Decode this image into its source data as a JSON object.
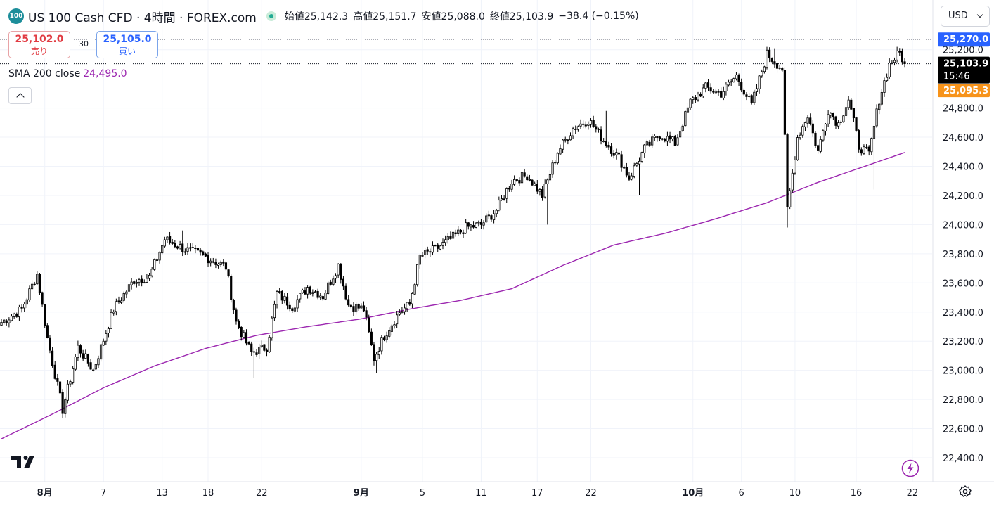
{
  "header": {
    "symbol_badge": "100",
    "title": "US 100 Cash CFD · 4時間 · FOREX.com",
    "open": "始値25,142.3",
    "high": "高値25,151.7",
    "low": "安値25,088.0",
    "close": "終値25,103.9",
    "change": "−38.4 (−0.15%)"
  },
  "trade": {
    "sell_price": "25,102.0",
    "sell_label": "売り",
    "spread": "30",
    "buy_price": "25,105.0",
    "buy_label": "買い"
  },
  "indicator": {
    "name": "SMA 200 close",
    "value": "24,495.0"
  },
  "currency": "USD",
  "icons": {
    "collapse": "chevron-up-icon",
    "currency_dropdown": "chevron-down-icon",
    "logo": "tradingview-logo",
    "quick_action": "lightning-icon",
    "settings": "gear-icon"
  },
  "colors": {
    "sma": "#9c27b0",
    "buy": "#2962ff",
    "sell": "#e13b42",
    "live": "#22ab94",
    "candle": "#000000",
    "target_label": "#2962ff",
    "lower_label": "#f7931a"
  },
  "chart_data": {
    "type": "candlestick",
    "x_tick_labels": [
      "8月",
      "7",
      "13",
      "18",
      "22",
      "9月",
      "5",
      "11",
      "17",
      "22",
      "10月",
      "6",
      "10",
      "16",
      "22"
    ],
    "x_tick_bold": [
      "8月",
      "9月",
      "10月"
    ],
    "y_ticks": [
      "22,400.0",
      "22,600.0",
      "22,800.0",
      "23,000.0",
      "23,200.0",
      "23,400.0",
      "23,600.0",
      "23,800.0",
      "24,000.0",
      "24,200.0",
      "24,400.0",
      "24,600.0",
      "24,800.0",
      "25,200.0"
    ],
    "ylim": [
      22390,
      25350
    ],
    "price_labels": {
      "upper": "25,270.0",
      "last": "25,103.9",
      "countdown": "15:46",
      "lower": "25,095.3"
    },
    "close_path": [
      {
        "i": 0,
        "v": 23330
      },
      {
        "i": 8,
        "v": 23420
      },
      {
        "i": 14,
        "v": 23660
      },
      {
        "i": 18,
        "v": 23220
      },
      {
        "i": 24,
        "v": 22730
      },
      {
        "i": 30,
        "v": 23160
      },
      {
        "i": 36,
        "v": 23000
      },
      {
        "i": 44,
        "v": 23420
      },
      {
        "i": 52,
        "v": 23620
      },
      {
        "i": 58,
        "v": 23640
      },
      {
        "i": 64,
        "v": 23900
      },
      {
        "i": 72,
        "v": 23830
      },
      {
        "i": 80,
        "v": 23780
      },
      {
        "i": 88,
        "v": 23710
      },
      {
        "i": 92,
        "v": 23330
      },
      {
        "i": 98,
        "v": 23120
      },
      {
        "i": 104,
        "v": 23160
      },
      {
        "i": 108,
        "v": 23530
      },
      {
        "i": 114,
        "v": 23440
      },
      {
        "i": 120,
        "v": 23570
      },
      {
        "i": 126,
        "v": 23510
      },
      {
        "i": 132,
        "v": 23720
      },
      {
        "i": 136,
        "v": 23450
      },
      {
        "i": 142,
        "v": 23420
      },
      {
        "i": 146,
        "v": 23080
      },
      {
        "i": 150,
        "v": 23240
      },
      {
        "i": 156,
        "v": 23400
      },
      {
        "i": 160,
        "v": 23450
      },
      {
        "i": 164,
        "v": 23780
      },
      {
        "i": 170,
        "v": 23830
      },
      {
        "i": 176,
        "v": 23900
      },
      {
        "i": 182,
        "v": 23980
      },
      {
        "i": 188,
        "v": 24000
      },
      {
        "i": 194,
        "v": 24100
      },
      {
        "i": 200,
        "v": 24300
      },
      {
        "i": 206,
        "v": 24340
      },
      {
        "i": 212,
        "v": 24200
      },
      {
        "i": 218,
        "v": 24500
      },
      {
        "i": 224,
        "v": 24660
      },
      {
        "i": 230,
        "v": 24720
      },
      {
        "i": 236,
        "v": 24580
      },
      {
        "i": 242,
        "v": 24460
      },
      {
        "i": 246,
        "v": 24320
      },
      {
        "i": 252,
        "v": 24520
      },
      {
        "i": 258,
        "v": 24620
      },
      {
        "i": 264,
        "v": 24560
      },
      {
        "i": 270,
        "v": 24840
      },
      {
        "i": 276,
        "v": 24940
      },
      {
        "i": 282,
        "v": 24900
      },
      {
        "i": 288,
        "v": 25020
      },
      {
        "i": 294,
        "v": 24820
      },
      {
        "i": 300,
        "v": 25170
      },
      {
        "i": 306,
        "v": 25070
      },
      {
        "i": 308,
        "v": 24100
      },
      {
        "i": 312,
        "v": 24600
      },
      {
        "i": 316,
        "v": 24750
      },
      {
        "i": 320,
        "v": 24500
      },
      {
        "i": 324,
        "v": 24790
      },
      {
        "i": 328,
        "v": 24690
      },
      {
        "i": 332,
        "v": 24860
      },
      {
        "i": 336,
        "v": 24540
      },
      {
        "i": 340,
        "v": 24480
      },
      {
        "i": 344,
        "v": 24860
      },
      {
        "i": 348,
        "v": 25100
      },
      {
        "i": 352,
        "v": 25180
      },
      {
        "i": 354,
        "v": 25104
      }
    ],
    "extremes": [
      {
        "i": 24,
        "low": 22670
      },
      {
        "i": 71,
        "high": 23960
      },
      {
        "i": 99,
        "low": 22950
      },
      {
        "i": 147,
        "low": 22980
      },
      {
        "i": 214,
        "low": 24000
      },
      {
        "i": 237,
        "high": 24780
      },
      {
        "i": 250,
        "low": 24200
      },
      {
        "i": 303,
        "high": 25210
      },
      {
        "i": 308,
        "low": 23980
      },
      {
        "i": 342,
        "low": 24240
      },
      {
        "i": 353,
        "high": 25210
      }
    ],
    "sma_path": [
      {
        "i": 0,
        "v": 22530
      },
      {
        "i": 20,
        "v": 22700
      },
      {
        "i": 40,
        "v": 22880
      },
      {
        "i": 60,
        "v": 23030
      },
      {
        "i": 80,
        "v": 23150
      },
      {
        "i": 100,
        "v": 23240
      },
      {
        "i": 120,
        "v": 23300
      },
      {
        "i": 140,
        "v": 23350
      },
      {
        "i": 160,
        "v": 23420
      },
      {
        "i": 180,
        "v": 23480
      },
      {
        "i": 200,
        "v": 23560
      },
      {
        "i": 220,
        "v": 23720
      },
      {
        "i": 240,
        "v": 23860
      },
      {
        "i": 260,
        "v": 23940
      },
      {
        "i": 280,
        "v": 24040
      },
      {
        "i": 300,
        "v": 24150
      },
      {
        "i": 320,
        "v": 24290
      },
      {
        "i": 340,
        "v": 24410
      },
      {
        "i": 354,
        "v": 24495
      }
    ]
  }
}
